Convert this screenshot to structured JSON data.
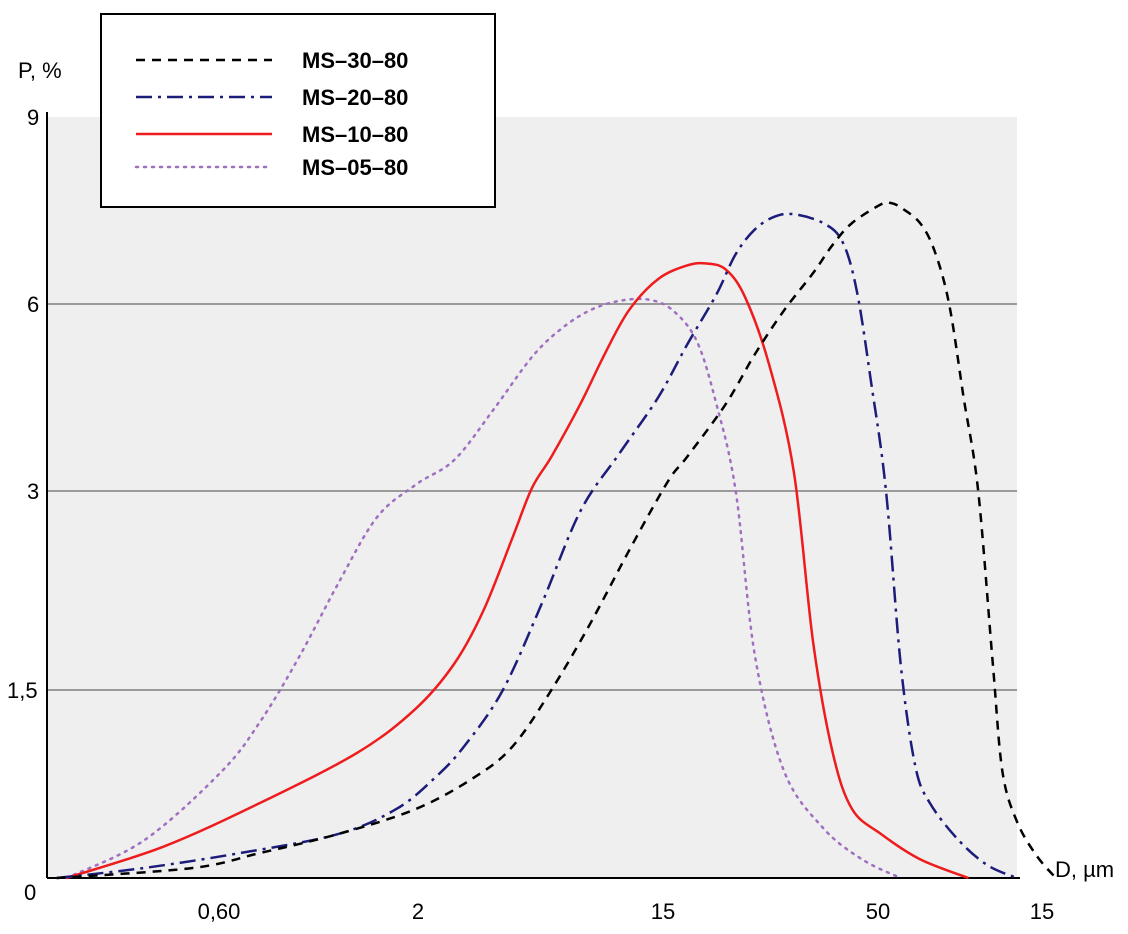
{
  "chart_data": {
    "type": "line",
    "title": "",
    "xlabel": "D, µm",
    "ylabel": "P, %",
    "y_tick_labels": [
      "0",
      "1,5",
      "3",
      "6",
      "9"
    ],
    "x_tick_labels": [
      "0,60",
      "2",
      "15",
      "50",
      "15"
    ],
    "grid": true,
    "legend_position": "top-left",
    "colors": {
      "plot_bg": "#efefef",
      "grid": "#9a9a9a",
      "MS-30-80": "#000000",
      "MS-20-80": "#1c1c7a",
      "MS-10-80": "#ee1c1c",
      "MS-05-80": "#a070c0"
    },
    "series": [
      {
        "name": "MS–30–80",
        "line_style": "dashed",
        "points": [
          [
            0.01,
            0.0
          ],
          [
            0.15,
            0.08
          ],
          [
            0.22,
            0.2
          ],
          [
            0.3,
            0.35
          ],
          [
            0.38,
            0.55
          ],
          [
            0.44,
            0.8
          ],
          [
            0.48,
            1.05
          ],
          [
            0.52,
            1.5
          ],
          [
            0.56,
            2.0
          ],
          [
            0.6,
            2.55
          ],
          [
            0.64,
            3.15
          ],
          [
            0.66,
            3.55
          ],
          [
            0.7,
            4.4
          ],
          [
            0.73,
            5.2
          ],
          [
            0.76,
            5.9
          ],
          [
            0.79,
            6.5
          ],
          [
            0.81,
            6.95
          ],
          [
            0.83,
            7.3
          ],
          [
            0.86,
            7.6
          ],
          [
            0.87,
            7.62
          ],
          [
            0.88,
            7.55
          ],
          [
            0.9,
            7.3
          ],
          [
            0.915,
            6.85
          ],
          [
            0.93,
            6.0
          ],
          [
            0.945,
            4.5
          ],
          [
            0.96,
            3.0
          ],
          [
            0.975,
            1.7
          ],
          [
            0.985,
            0.85
          ],
          [
            1.0,
            0.45
          ],
          [
            1.02,
            0.18
          ],
          [
            1.04,
            0.0
          ]
        ]
      },
      {
        "name": "MS–20–80",
        "line_style": "dashdot",
        "points": [
          [
            0.01,
            0.0
          ],
          [
            0.1,
            0.08
          ],
          [
            0.2,
            0.2
          ],
          [
            0.3,
            0.35
          ],
          [
            0.36,
            0.55
          ],
          [
            0.4,
            0.8
          ],
          [
            0.43,
            1.05
          ],
          [
            0.47,
            1.5
          ],
          [
            0.51,
            2.15
          ],
          [
            0.55,
            2.85
          ],
          [
            0.59,
            3.6
          ],
          [
            0.63,
            4.5
          ],
          [
            0.66,
            5.35
          ],
          [
            0.69,
            6.15
          ],
          [
            0.71,
            6.8
          ],
          [
            0.73,
            7.2
          ],
          [
            0.75,
            7.4
          ],
          [
            0.77,
            7.44
          ],
          [
            0.8,
            7.3
          ],
          [
            0.82,
            7.0
          ],
          [
            0.835,
            6.2
          ],
          [
            0.85,
            4.7
          ],
          [
            0.865,
            3.0
          ],
          [
            0.88,
            1.7
          ],
          [
            0.895,
            0.9
          ],
          [
            0.91,
            0.6
          ],
          [
            0.94,
            0.3
          ],
          [
            0.97,
            0.1
          ],
          [
            1.0,
            0.0
          ]
        ]
      },
      {
        "name": "MS–10–80",
        "line_style": "solid",
        "points": [
          [
            0.02,
            0.0
          ],
          [
            0.12,
            0.25
          ],
          [
            0.22,
            0.6
          ],
          [
            0.32,
            1.0
          ],
          [
            0.38,
            1.35
          ],
          [
            0.42,
            1.7
          ],
          [
            0.45,
            2.1
          ],
          [
            0.48,
            2.65
          ],
          [
            0.5,
            3.05
          ],
          [
            0.52,
            3.55
          ],
          [
            0.55,
            4.4
          ],
          [
            0.575,
            5.2
          ],
          [
            0.6,
            5.9
          ],
          [
            0.63,
            6.4
          ],
          [
            0.66,
            6.62
          ],
          [
            0.68,
            6.65
          ],
          [
            0.7,
            6.55
          ],
          [
            0.72,
            6.1
          ],
          [
            0.745,
            5.0
          ],
          [
            0.77,
            3.3
          ],
          [
            0.79,
            1.85
          ],
          [
            0.81,
            1.0
          ],
          [
            0.83,
            0.55
          ],
          [
            0.86,
            0.35
          ],
          [
            0.9,
            0.15
          ],
          [
            0.95,
            0.0
          ]
        ]
      },
      {
        "name": "MS–05–80",
        "line_style": "dotted",
        "points": [
          [
            0.02,
            0.0
          ],
          [
            0.1,
            0.3
          ],
          [
            0.18,
            0.85
          ],
          [
            0.22,
            1.25
          ],
          [
            0.26,
            1.75
          ],
          [
            0.3,
            2.3
          ],
          [
            0.34,
            2.8
          ],
          [
            0.38,
            3.1
          ],
          [
            0.42,
            3.5
          ],
          [
            0.46,
            4.3
          ],
          [
            0.5,
            5.15
          ],
          [
            0.53,
            5.6
          ],
          [
            0.56,
            5.9
          ],
          [
            0.59,
            6.05
          ],
          [
            0.62,
            6.07
          ],
          [
            0.645,
            5.9
          ],
          [
            0.67,
            5.4
          ],
          [
            0.69,
            4.4
          ],
          [
            0.71,
            3.0
          ],
          [
            0.73,
            1.75
          ],
          [
            0.76,
            0.85
          ],
          [
            0.8,
            0.4
          ],
          [
            0.84,
            0.15
          ],
          [
            0.88,
            0.0
          ]
        ]
      }
    ]
  }
}
